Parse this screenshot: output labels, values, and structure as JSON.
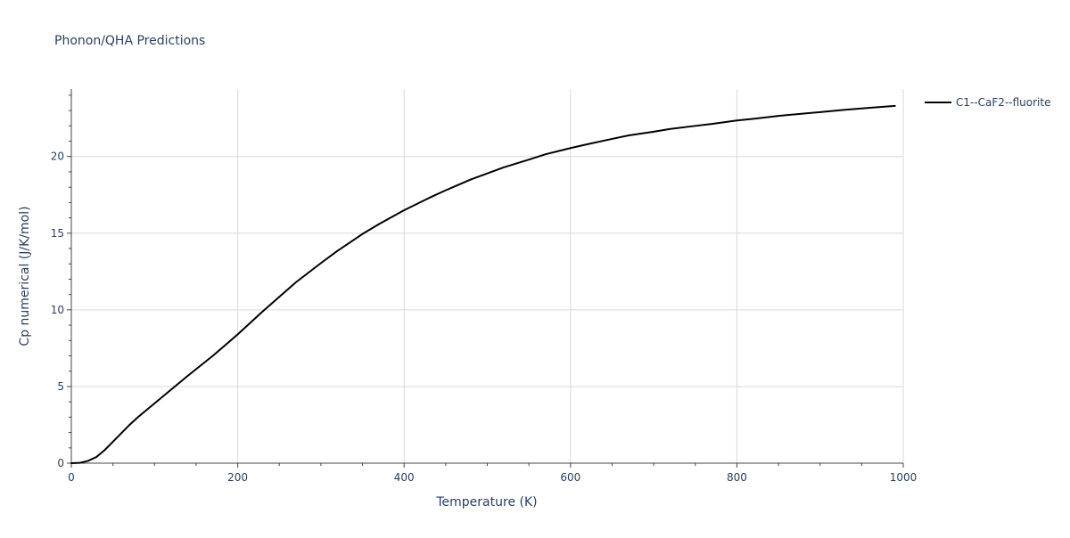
{
  "chart_data": {
    "type": "line",
    "title": "Phonon/QHA Predictions",
    "xlabel": "Temperature (K)",
    "ylabel": "Cp numerical (J/K/mol)",
    "xlim": [
      0,
      1000
    ],
    "ylim": [
      0,
      24.4
    ],
    "xticks": [
      0,
      200,
      400,
      600,
      800,
      1000
    ],
    "yticks": [
      0,
      5,
      10,
      15,
      20
    ],
    "grid": true,
    "legend_position": "top-right",
    "series": [
      {
        "name": "C1--CaF2--fluorite",
        "color": "#000000",
        "x": [
          0,
          10,
          20,
          30,
          40,
          50,
          60,
          70,
          80,
          90,
          100,
          120,
          140,
          170,
          200,
          230,
          270,
          300,
          320,
          350,
          370,
          400,
          430,
          450,
          480,
          500,
          520,
          550,
          570,
          600,
          620,
          650,
          670,
          700,
          720,
          750,
          770,
          800,
          820,
          850,
          870,
          900,
          930,
          960,
          990
        ],
        "y": [
          0,
          0.02,
          0.15,
          0.4,
          0.85,
          1.4,
          1.95,
          2.5,
          3.0,
          3.45,
          3.9,
          4.8,
          5.7,
          7.0,
          8.4,
          9.9,
          11.8,
          13.05,
          13.85,
          14.95,
          15.6,
          16.5,
          17.3,
          17.8,
          18.5,
          18.9,
          19.3,
          19.8,
          20.15,
          20.55,
          20.8,
          21.15,
          21.38,
          21.62,
          21.8,
          22.0,
          22.13,
          22.35,
          22.46,
          22.65,
          22.75,
          22.9,
          23.05,
          23.18,
          23.3
        ]
      }
    ]
  }
}
